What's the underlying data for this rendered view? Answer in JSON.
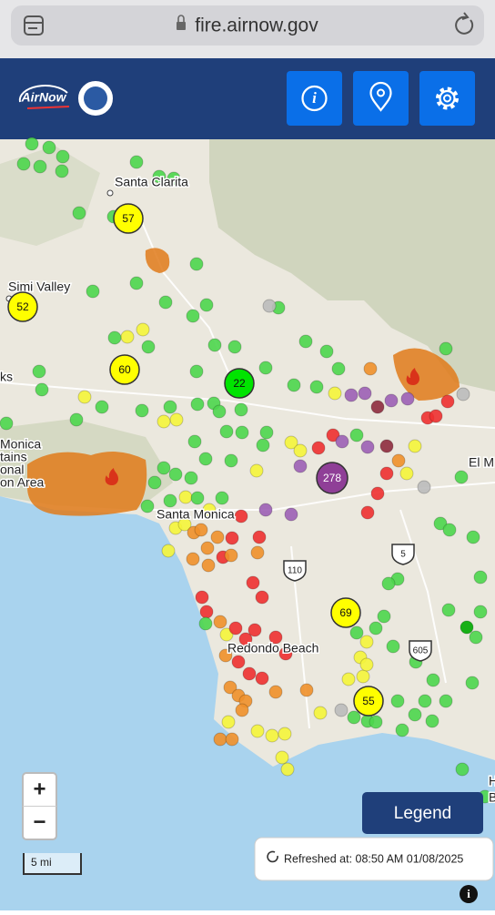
{
  "browser": {
    "url": "fire.airnow.gov"
  },
  "header": {
    "logo": "AirNow"
  },
  "map": {
    "places": [
      "Santa Clarita",
      "Simi Valley",
      "ks",
      "Monica",
      "tains",
      "onal",
      "on Area",
      "Santa Monica",
      "Redondo Beach",
      "El M",
      "H",
      "B"
    ],
    "highways": [
      "110",
      "5",
      "605"
    ],
    "clusters": [
      {
        "value": 57,
        "color": "#ffff00"
      },
      {
        "value": 52,
        "color": "#ffff00"
      },
      {
        "value": 60,
        "color": "#ffff00"
      },
      {
        "value": 22,
        "color": "#00e400"
      },
      {
        "value": 278,
        "color": "#8f3f97"
      },
      {
        "value": 69,
        "color": "#ffff00"
      },
      {
        "value": 55,
        "color": "#ffff00"
      }
    ],
    "scale": "5 mi"
  },
  "controls": {
    "zoom_in": "+",
    "zoom_out": "−",
    "legend": "Legend",
    "refreshed": "Refreshed at: 08:50 AM 01/08/2025"
  }
}
